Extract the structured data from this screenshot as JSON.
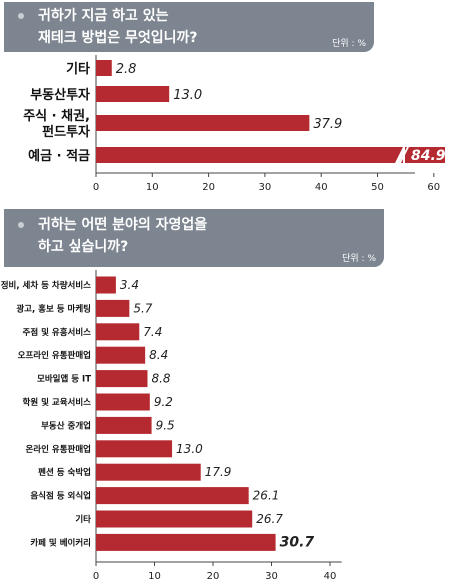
{
  "chart_data": [
    {
      "type": "bar",
      "orientation": "horizontal",
      "title_lines": [
        "귀하가 지금 하고 있는",
        "재테크 방법은 무엇입니까?"
      ],
      "unit": "단위 : %",
      "categories": [
        "기타",
        "부동산투자",
        "주식 · 채권,|펀드투자",
        "예금 · 적금"
      ],
      "values": [
        2.8,
        13.0,
        37.9,
        84.9
      ],
      "value_labels": [
        "2.8",
        "13.0",
        "37.9",
        "84.9"
      ],
      "xticks": [
        "0",
        "10",
        "20",
        "30",
        "40",
        "50",
        "60"
      ],
      "xlim": [
        0,
        66
      ],
      "axis_break": true,
      "bar_color": "#b52a30"
    },
    {
      "type": "bar",
      "orientation": "horizontal",
      "title_lines": [
        "귀하는 어떤 분야의 자영업을",
        "하고 싶습니까?"
      ],
      "unit": "단위 : %",
      "categories": [
        "정비, 세차 등 차량서비스",
        "광고, 홍보 등  마케팅",
        "주점 및  유흥서비스",
        "오프라인 유통판매업",
        "모바일앱 등 IT",
        "학원 및 교육서비스",
        "부동산  중개업",
        "온라인 유통판매업",
        "펜션 등 숙박업",
        "음식점 등 외식업",
        "기타",
        "카페 및 베이커리"
      ],
      "values": [
        3.4,
        5.7,
        7.4,
        8.4,
        8.8,
        9.2,
        9.5,
        13.0,
        17.9,
        26.1,
        26.7,
        30.7
      ],
      "value_labels": [
        "3.4",
        "5.7",
        "7.4",
        "8.4",
        "8.8",
        "9.2",
        "9.5",
        "13.0",
        "17.9",
        "26.1",
        "26.7",
        "30.7"
      ],
      "xticks": [
        "0",
        "10",
        "20",
        "30",
        "40"
      ],
      "xlim": [
        0,
        42
      ],
      "bar_color": "#b52a30"
    }
  ]
}
